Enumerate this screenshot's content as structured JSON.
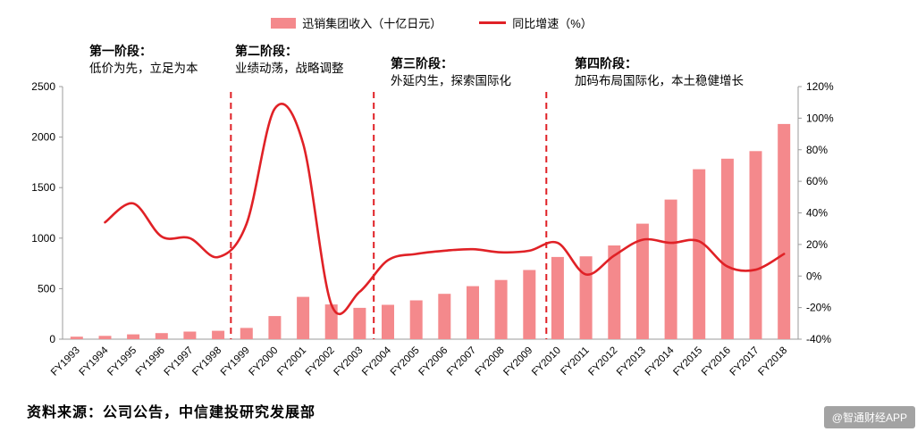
{
  "legend": {
    "bar_label": "迅销集团收入（十亿日元）",
    "line_label": "同比增速（%）"
  },
  "phases": [
    {
      "title": "第一阶段：",
      "desc": "低价为先，立足为本"
    },
    {
      "title": "第二阶段：",
      "desc": "业绩动荡，战略调整"
    },
    {
      "title": "第三阶段：",
      "desc": "外延内生，探索国际化"
    },
    {
      "title": "第四阶段：",
      "desc": "加码布局国际化，本土稳健增长"
    }
  ],
  "source_note": "资料来源：公司公告，中信建投研究发展部",
  "watermark": "@智通财经APP",
  "colors": {
    "bar": "#F4898C",
    "line": "#E02126",
    "divider": "#E02126",
    "axis": "#9b9b9b",
    "text": "#000000",
    "watermark_bg": "#9C9C9C"
  },
  "chart_data": {
    "type": "bar",
    "title": "",
    "categories": [
      "FY1993",
      "FY1994",
      "FY1995",
      "FY1996",
      "FY1997",
      "FY1998",
      "FY1999",
      "FY2000",
      "FY2001",
      "FY2002",
      "FY2003",
      "FY2004",
      "FY2005",
      "FY2006",
      "FY2007",
      "FY2008",
      "FY2009",
      "FY2010",
      "FY2011",
      "FY2012",
      "FY2013",
      "FY2014",
      "FY2015",
      "FY2016",
      "FY2017",
      "FY2018"
    ],
    "series": [
      {
        "name": "迅销集团收入（十亿日元）",
        "type": "bar",
        "axis": "left",
        "values": [
          25,
          33,
          48,
          60,
          75,
          83,
          111,
          229,
          419,
          344,
          310,
          340,
          384,
          449,
          525,
          586,
          685,
          814,
          820,
          928,
          1143,
          1382,
          1682,
          1786,
          1861,
          2130
        ]
      },
      {
        "name": "同比增速（%）",
        "type": "line",
        "axis": "right",
        "values": [
          null,
          34,
          46,
          25,
          24,
          12,
          33,
          106,
          84,
          -18,
          -10,
          10,
          14,
          16,
          17,
          15,
          16,
          21,
          1,
          13,
          23,
          21,
          22,
          6,
          4,
          14
        ]
      }
    ],
    "left_axis": {
      "label": "",
      "min": 0,
      "max": 2500,
      "ticks": [
        0,
        500,
        1000,
        1500,
        2000,
        2500
      ]
    },
    "right_axis": {
      "label": "",
      "min": -40,
      "max": 120,
      "ticks_pct": [
        -40,
        -20,
        0,
        20,
        40,
        60,
        80,
        100,
        120
      ]
    },
    "grid": false,
    "legend_position": "top",
    "phase_divider_indices": [
      5.45,
      10.5,
      16.6
    ]
  }
}
